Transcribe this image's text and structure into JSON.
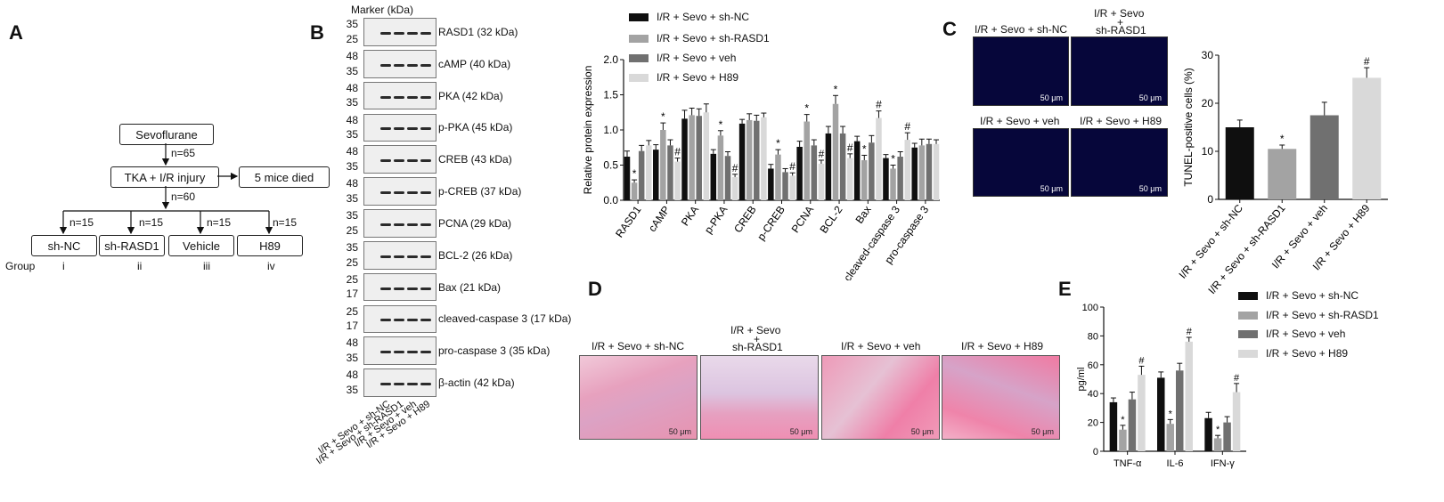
{
  "colors": {
    "sh_nc": "#0f0f0f",
    "sh_rasd1": "#a3a3a3",
    "veh": "#707070",
    "h89": "#d9d9d9"
  },
  "panels": {
    "a": "A",
    "b": "B",
    "c": "C",
    "d": "D",
    "e": "E"
  },
  "flow": {
    "top": "Sevoflurane",
    "n1": "n=65",
    "mid": "TKA + I/R injury",
    "died": "5 mice died",
    "n2": "n=60",
    "branch_n": [
      "n=15",
      "n=15",
      "n=15",
      "n=15"
    ],
    "groups": [
      "sh-NC",
      "sh-RASD1",
      "Vehicle",
      "H89"
    ],
    "group_label": "Group",
    "roman": [
      "i",
      "ii",
      "iii",
      "iv"
    ]
  },
  "blot": {
    "marker": "Marker (kDa)",
    "rows": [
      {
        "name": "RASD1 (32 kDa)",
        "mw": [
          "35",
          "25"
        ]
      },
      {
        "name": "cAMP (40 kDa)",
        "mw": [
          "48",
          "35"
        ]
      },
      {
        "name": "PKA (42 kDa)",
        "mw": [
          "48",
          "35"
        ]
      },
      {
        "name": "p-PKA (45 kDa)",
        "mw": [
          "48",
          "35"
        ]
      },
      {
        "name": "CREB (43 kDa)",
        "mw": [
          "48",
          "35"
        ]
      },
      {
        "name": "p-CREB (37 kDa)",
        "mw": [
          "48",
          "35"
        ]
      },
      {
        "name": "PCNA (29 kDa)",
        "mw": [
          "35",
          "25"
        ]
      },
      {
        "name": "BCL-2 (26 kDa)",
        "mw": [
          "35",
          "25"
        ]
      },
      {
        "name": "Bax (21 kDa)",
        "mw": [
          "25",
          "17"
        ]
      },
      {
        "name": "cleaved-caspase 3 (17 kDa)",
        "mw": [
          "25",
          "17"
        ]
      },
      {
        "name": "pro-caspase 3 (35 kDa)",
        "mw": [
          "48",
          "35"
        ]
      },
      {
        "name": "β-actin (42 kDa)",
        "mw": [
          "48",
          "35"
        ]
      }
    ],
    "lanes": [
      "I/R + Sevo + sh-NC",
      "I/R + Sevo + sh-RASD1",
      "I/R + Sevo + veh",
      "I/R + Sevo + H89"
    ]
  },
  "chart_data": [
    {
      "type": "bar",
      "id": "b_chart",
      "ylabel": "Relative protein expression",
      "ylim": [
        0,
        2.0
      ],
      "yticks": [
        "0.0",
        "0.5",
        "1.0",
        "1.5",
        "2.0"
      ],
      "categories": [
        "RASD1",
        "cAMP",
        "PKA",
        "p-PKA",
        "CREB",
        "p-CREB",
        "PCNA",
        "BCL-2",
        "Bax",
        "cleaved-caspase 3",
        "pro-caspase 3"
      ],
      "series": [
        {
          "name": "I/R + Sevo + sh-NC",
          "values": [
            0.62,
            0.72,
            1.16,
            0.66,
            1.09,
            0.45,
            0.76,
            0.95,
            0.84,
            0.6,
            0.75
          ],
          "err": [
            0.08,
            0.07,
            0.12,
            0.06,
            0.06,
            0.06,
            0.08,
            0.1,
            0.07,
            0.05,
            0.06
          ]
        },
        {
          "name": "I/R + Sevo + sh-RASD1",
          "values": [
            0.25,
            1.0,
            1.21,
            0.92,
            1.14,
            0.65,
            1.12,
            1.37,
            0.57,
            0.45,
            0.78
          ],
          "err": [
            0.04,
            0.1,
            0.1,
            0.07,
            0.09,
            0.07,
            0.1,
            0.12,
            0.07,
            0.05,
            0.09
          ]
        },
        {
          "name": "I/R + Sevo + veh",
          "values": [
            0.7,
            0.78,
            1.2,
            0.63,
            1.13,
            0.4,
            0.78,
            0.95,
            0.82,
            0.62,
            0.8
          ],
          "err": [
            0.08,
            0.08,
            0.1,
            0.06,
            0.08,
            0.05,
            0.08,
            0.1,
            0.1,
            0.07,
            0.07
          ]
        },
        {
          "name": "I/R + Sevo + H89",
          "values": [
            0.78,
            0.55,
            1.25,
            0.33,
            1.18,
            0.35,
            0.52,
            0.6,
            1.17,
            0.86,
            0.8
          ],
          "err": [
            0.07,
            0.05,
            0.12,
            0.04,
            0.06,
            0.04,
            0.05,
            0.06,
            0.1,
            0.1,
            0.06
          ]
        }
      ],
      "marks": [
        {
          "series": 1,
          "category": 0,
          "text": "*"
        },
        {
          "series": 1,
          "category": 1,
          "text": "*"
        },
        {
          "series": 3,
          "category": 1,
          "text": "#"
        },
        {
          "series": 1,
          "category": 3,
          "text": "*"
        },
        {
          "series": 3,
          "category": 3,
          "text": "#"
        },
        {
          "series": 1,
          "category": 5,
          "text": "*"
        },
        {
          "series": 3,
          "category": 5,
          "text": "#"
        },
        {
          "series": 1,
          "category": 6,
          "text": "*"
        },
        {
          "series": 3,
          "category": 6,
          "text": "#"
        },
        {
          "series": 1,
          "category": 7,
          "text": "*"
        },
        {
          "series": 3,
          "category": 7,
          "text": "#"
        },
        {
          "series": 1,
          "category": 8,
          "text": "*"
        },
        {
          "series": 3,
          "category": 8,
          "text": "#"
        },
        {
          "series": 1,
          "category": 9,
          "text": "*"
        },
        {
          "series": 3,
          "category": 9,
          "text": "#"
        }
      ]
    },
    {
      "type": "bar",
      "id": "c_chart",
      "ylabel": "TUNEL-positive cells (%)",
      "ylim": [
        0,
        30
      ],
      "yticks": [
        "0",
        "10",
        "20",
        "30"
      ],
      "categories": [
        "I/R + Sevo + sh-NC",
        "I/R + Sevo + sh-RASD1",
        "I/R + Sevo + veh",
        "I/R + Sevo + H89"
      ],
      "values": [
        15,
        10.5,
        17.5,
        25.3
      ],
      "err": [
        1.5,
        0.8,
        2.7,
        2.1
      ],
      "marks": [
        {
          "category": 1,
          "text": "*"
        },
        {
          "category": 3,
          "text": "#"
        }
      ]
    },
    {
      "type": "bar",
      "id": "e_chart",
      "ylabel": "pg/ml",
      "ylim": [
        0,
        100
      ],
      "yticks": [
        "0",
        "20",
        "40",
        "60",
        "80",
        "100"
      ],
      "categories": [
        "TNF-α",
        "IL-6",
        "IFN-γ"
      ],
      "series": [
        {
          "name": "I/R + Sevo + sh-NC",
          "values": [
            34,
            51,
            23
          ],
          "err": [
            3,
            4,
            4
          ]
        },
        {
          "name": "I/R + Sevo + sh-RASD1",
          "values": [
            15,
            19,
            9
          ],
          "err": [
            3,
            3,
            2
          ]
        },
        {
          "name": "I/R + Sevo + veh",
          "values": [
            36,
            56,
            20
          ],
          "err": [
            5,
            5,
            4
          ]
        },
        {
          "name": "I/R + Sevo + H89",
          "values": [
            53,
            76,
            41
          ],
          "err": [
            6,
            3,
            6
          ]
        }
      ],
      "marks": [
        {
          "series": 1,
          "category": 0,
          "text": "*"
        },
        {
          "series": 3,
          "category": 0,
          "text": "#"
        },
        {
          "series": 1,
          "category": 1,
          "text": "*"
        },
        {
          "series": 3,
          "category": 1,
          "text": "#"
        },
        {
          "series": 1,
          "category": 2,
          "text": "*"
        },
        {
          "series": 3,
          "category": 2,
          "text": "#"
        }
      ]
    }
  ],
  "panel_c": {
    "images": [
      {
        "title": "I/R + Sevo + sh-NC",
        "scale": "50 μm"
      },
      {
        "title1": "I/R + Sevo",
        "plus": "+",
        "title2": "sh-RASD1",
        "scale": "50 μm"
      },
      {
        "title": "I/R + Sevo + veh",
        "scale": "50 μm"
      },
      {
        "title": "I/R + Sevo + H89",
        "scale": "50 μm"
      }
    ]
  },
  "panel_d": {
    "images": [
      {
        "title": "I/R + Sevo + sh-NC",
        "scale": "50 μm"
      },
      {
        "title1": "I/R + Sevo",
        "plus": "+",
        "title2": "sh-RASD1",
        "scale": "50 μm"
      },
      {
        "title": "I/R + Sevo + veh",
        "scale": "50 μm"
      },
      {
        "title": "I/R + Sevo + H89",
        "scale": "50 μm"
      }
    ]
  }
}
